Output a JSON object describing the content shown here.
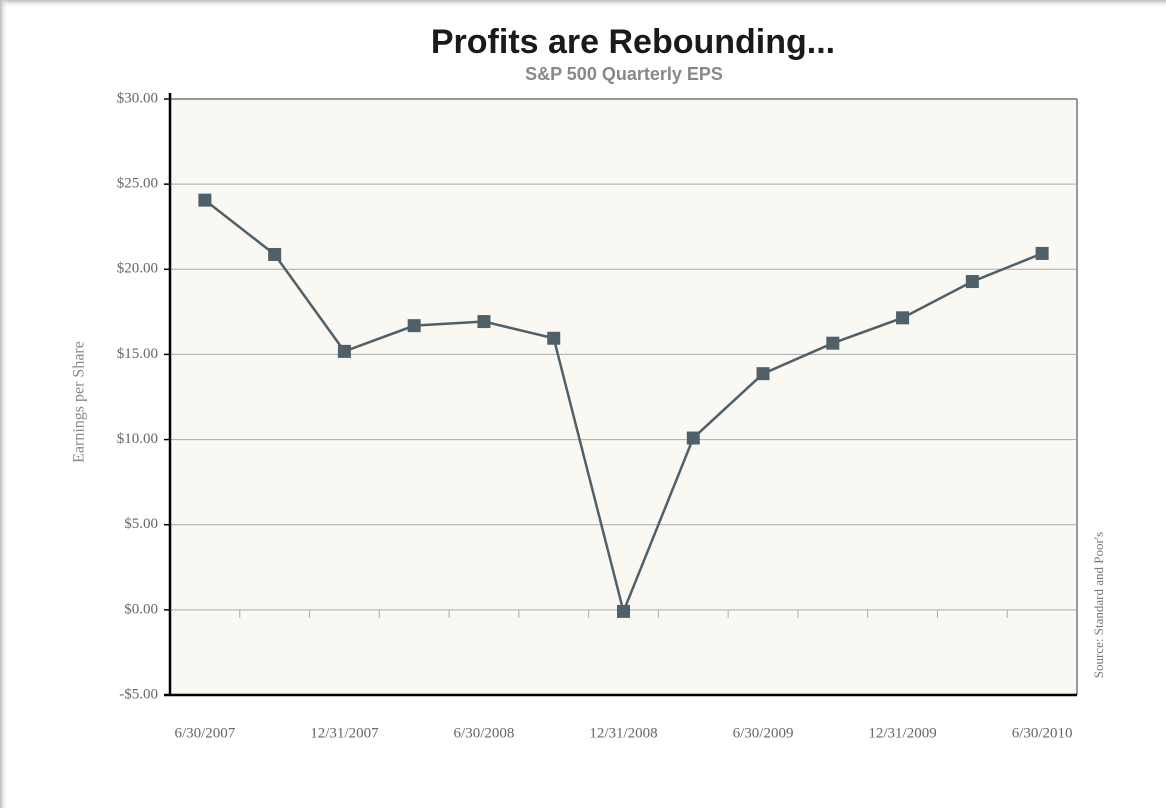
{
  "chart_data": {
    "type": "line",
    "title": "Profits are Rebounding...",
    "subtitle": "S&P 500 Quarterly EPS",
    "y_label": "Earnings per Share",
    "source": "Source: Standard and Poor's",
    "categories": [
      "6/30/2007",
      null,
      "12/31/2007",
      null,
      "6/30/2008",
      null,
      "12/31/2008",
      null,
      "6/30/2009",
      null,
      "12/31/2009",
      null,
      "6/30/2010"
    ],
    "series": [
      {
        "name": "S&P 500 Quarterly EPS",
        "color": "#4f6068",
        "values": [
          24.06,
          20.87,
          15.18,
          16.69,
          16.93,
          15.95,
          -0.09,
          10.09,
          13.87,
          15.66,
          17.15,
          19.28,
          20.93
        ]
      }
    ],
    "ylim": [
      -5,
      30
    ],
    "yticks": [
      {
        "value": -5,
        "label": "-$5.00"
      },
      {
        "value": 0,
        "label": "$0.00"
      },
      {
        "value": 5,
        "label": "$5.00"
      },
      {
        "value": 10,
        "label": "$10.00"
      },
      {
        "value": 15,
        "label": "$15.00"
      },
      {
        "value": 20,
        "label": "$20.00"
      },
      {
        "value": 25,
        "label": "$25.00"
      },
      {
        "value": 30,
        "label": "$30.00"
      }
    ],
    "grid": true
  }
}
